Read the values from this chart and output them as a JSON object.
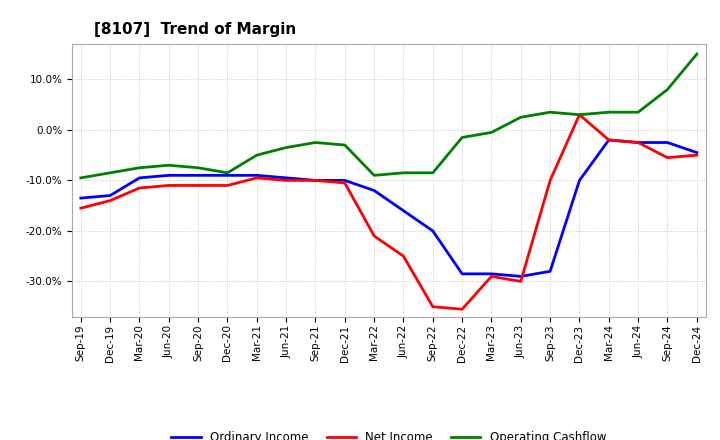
{
  "title": "[8107]  Trend of Margin",
  "x_labels": [
    "Sep-19",
    "Dec-19",
    "Mar-20",
    "Jun-20",
    "Sep-20",
    "Dec-20",
    "Mar-21",
    "Jun-21",
    "Sep-21",
    "Dec-21",
    "Mar-22",
    "Jun-22",
    "Sep-22",
    "Dec-22",
    "Mar-23",
    "Jun-23",
    "Sep-23",
    "Dec-23",
    "Mar-24",
    "Jun-24",
    "Sep-24",
    "Dec-24"
  ],
  "ordinary_income": [
    -13.5,
    -13.0,
    -9.5,
    -9.0,
    -9.0,
    -9.0,
    -9.0,
    -9.5,
    -10.0,
    -10.0,
    -12.0,
    -16.0,
    -20.0,
    -28.5,
    -28.5,
    -29.0,
    -28.0,
    -10.0,
    -2.0,
    -2.5,
    -2.5,
    -4.5
  ],
  "net_income": [
    -15.5,
    -14.0,
    -11.5,
    -11.0,
    -11.0,
    -11.0,
    -9.5,
    -10.0,
    -10.0,
    -10.5,
    -21.0,
    -25.0,
    -35.0,
    -35.5,
    -29.0,
    -30.0,
    -10.0,
    3.0,
    -2.0,
    -2.5,
    -5.5,
    -5.0
  ],
  "operating_cashflow": [
    -9.5,
    -8.5,
    -7.5,
    -7.0,
    -7.5,
    -8.5,
    -5.0,
    -3.5,
    -2.5,
    -3.0,
    -9.0,
    -8.5,
    -8.5,
    -1.5,
    -0.5,
    2.5,
    3.5,
    3.0,
    3.5,
    3.5,
    8.0,
    15.0
  ],
  "ylim": [
    -37,
    17
  ],
  "yticks": [
    -30.0,
    -20.0,
    -10.0,
    0.0,
    10.0
  ],
  "line_colors": {
    "ordinary_income": "#0000FF",
    "net_income": "#FF0000",
    "operating_cashflow": "#008000"
  },
  "line_width": 2.0,
  "legend_labels": [
    "Ordinary Income",
    "Net Income",
    "Operating Cashflow"
  ],
  "background_color": "#FFFFFF",
  "grid_color": "#BBBBBB",
  "title_fontsize": 11,
  "tick_fontsize": 7.5,
  "figsize": [
    7.2,
    4.4
  ],
  "dpi": 100
}
